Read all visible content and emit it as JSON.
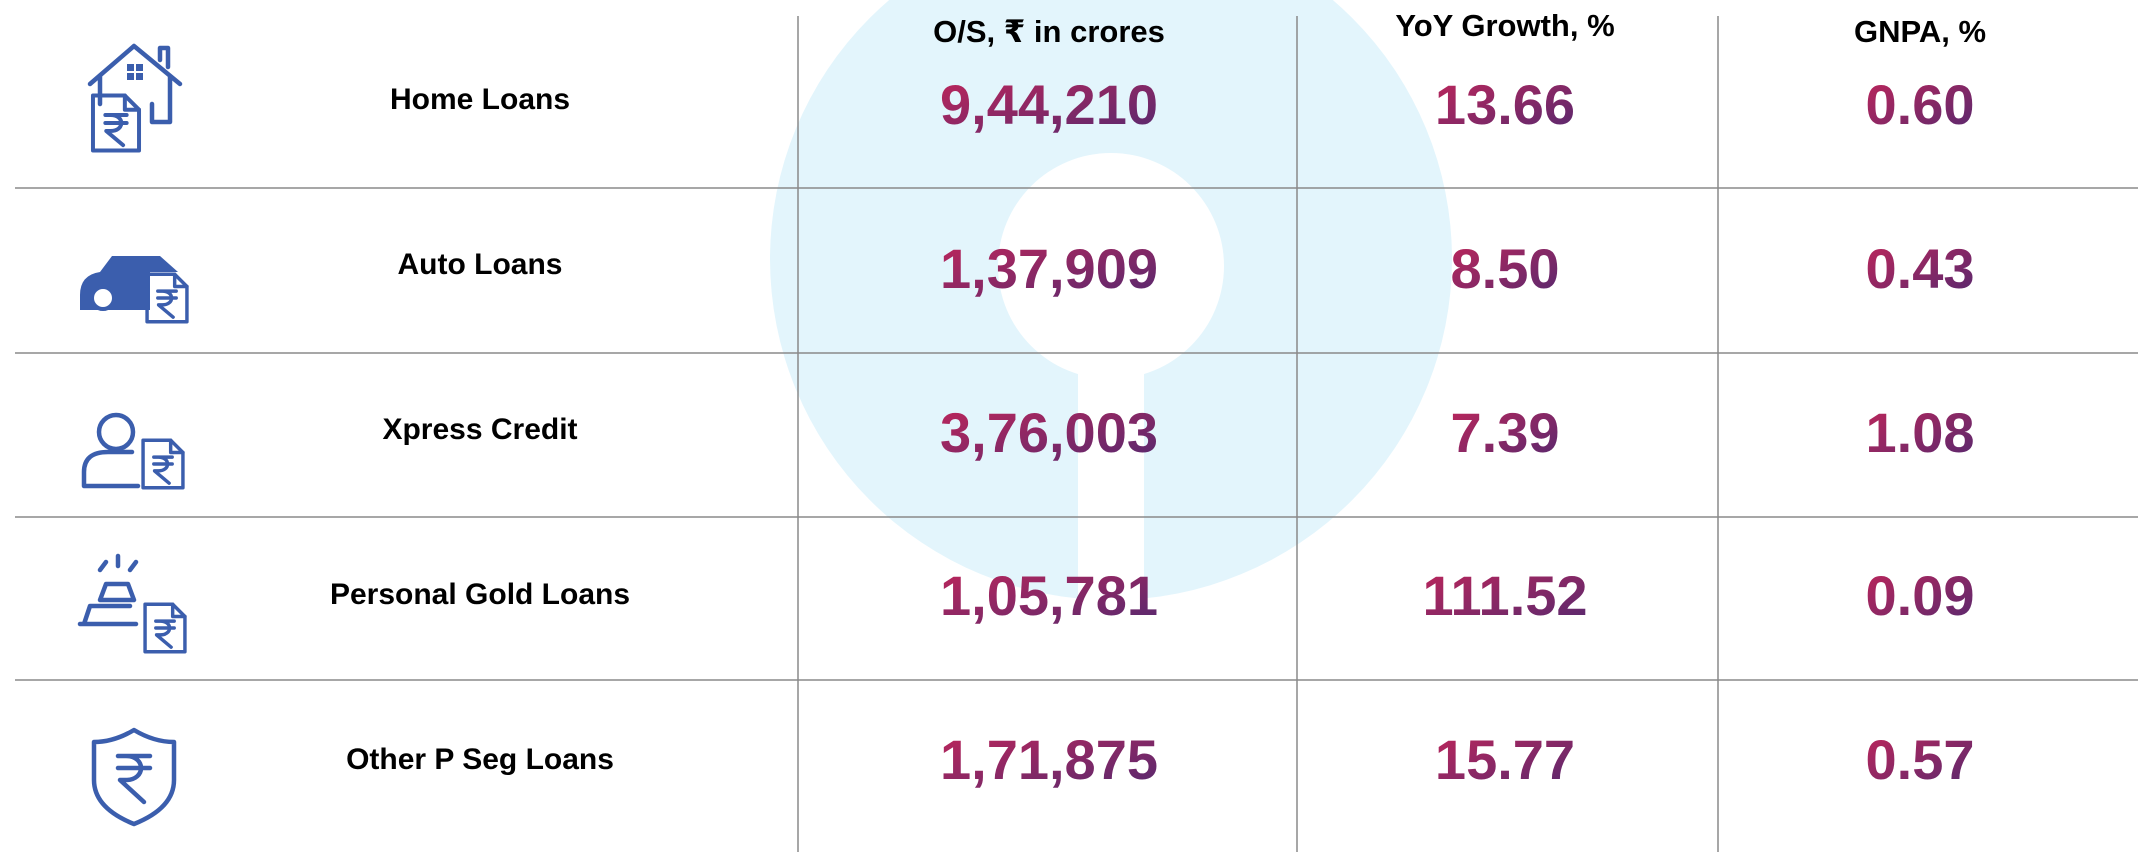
{
  "table": {
    "headers": [
      "O/S, ₹ in crores",
      "YoY Growth, %",
      "GNPA, %"
    ],
    "rows": [
      {
        "label": "Home Loans",
        "values": [
          "9,44,210",
          "13.66",
          "0.60"
        ]
      },
      {
        "label": "Auto Loans",
        "values": [
          "1,37,909",
          "8.50",
          "0.43"
        ]
      },
      {
        "label": "Xpress Credit",
        "values": [
          "3,76,003",
          "7.39",
          "1.08"
        ]
      },
      {
        "label": "Personal Gold Loans",
        "values": [
          "1,05,781",
          "111.52",
          "0.09"
        ]
      },
      {
        "label": "Other P Seg Loans",
        "values": [
          "1,71,875",
          "15.77",
          "0.57"
        ]
      }
    ]
  }
}
